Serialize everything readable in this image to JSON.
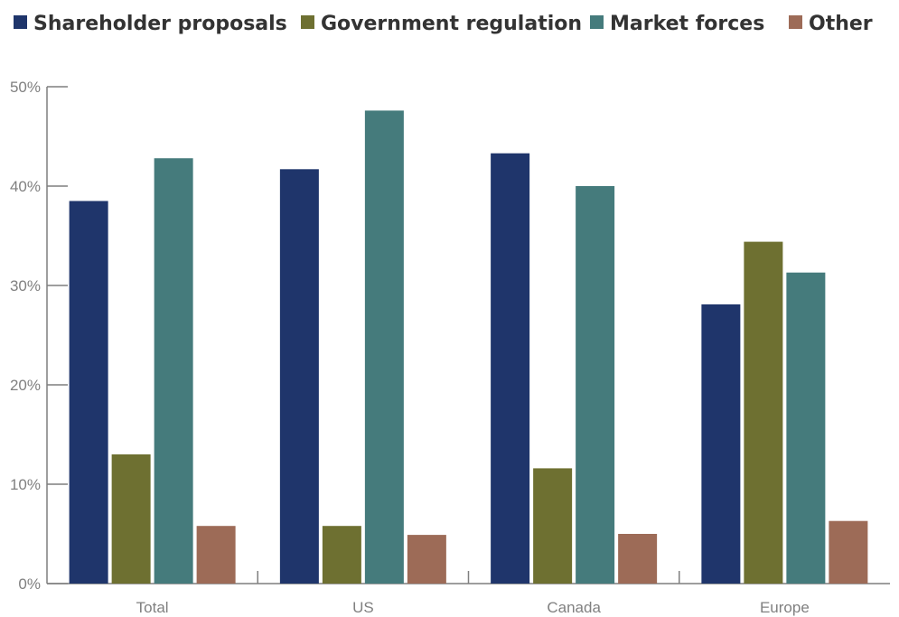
{
  "chart_data": {
    "type": "bar",
    "categories": [
      "Total",
      "US",
      "Canada",
      "Europe"
    ],
    "series": [
      {
        "name": "Shareholder proposals",
        "color": "#1f356b",
        "values": [
          38.5,
          41.7,
          43.3,
          28.1
        ]
      },
      {
        "name": "Government regulation",
        "color": "#6e7031",
        "values": [
          13.0,
          5.8,
          11.6,
          34.4
        ]
      },
      {
        "name": "Market forces",
        "color": "#457b7c",
        "values": [
          42.8,
          47.6,
          40.0,
          31.3
        ]
      },
      {
        "name": "Other",
        "color": "#9d6b57",
        "values": [
          5.8,
          4.9,
          5.0,
          6.3
        ]
      }
    ],
    "ylim": [
      0,
      50
    ],
    "yticks": [
      0,
      10,
      20,
      30,
      40,
      50
    ],
    "ytick_labels": [
      "0%",
      "10%",
      "20%",
      "30%",
      "40%",
      "50%"
    ],
    "legend_position": "top",
    "grid": false
  }
}
